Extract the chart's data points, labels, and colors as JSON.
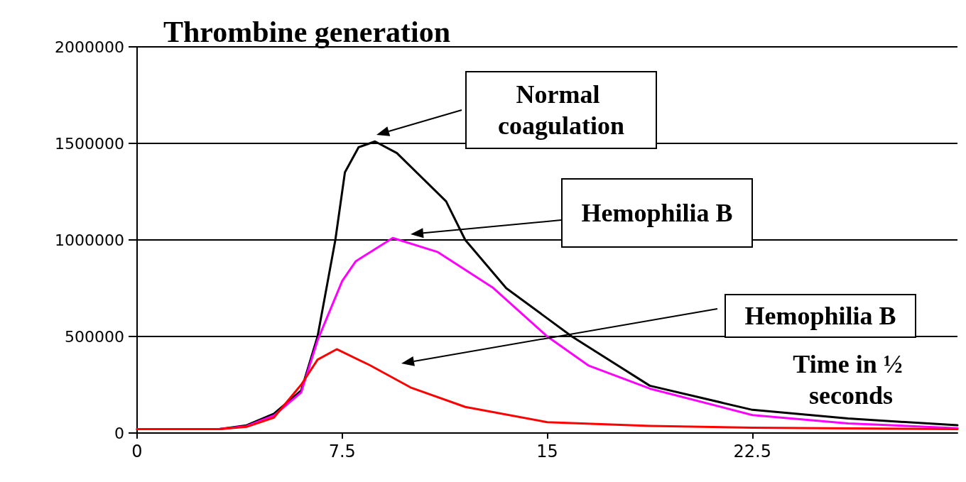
{
  "chart_data": {
    "type": "line",
    "title": "Thrombine generation",
    "xlabel": "Time in ½ seconds",
    "xlim": [
      0,
      30
    ],
    "xticks": [
      0,
      7.5,
      15,
      22.5
    ],
    "ylim": [
      0,
      2000000
    ],
    "yticks": [
      0,
      500000,
      1000000,
      1500000,
      2000000
    ],
    "grid": "y",
    "marker": "none",
    "line_style": "solid",
    "series": [
      {
        "color": "#000000",
        "x": [
          0,
          3,
          4,
          5,
          6,
          6.6,
          7.25,
          7.6,
          8.1,
          8.7,
          9.5,
          11.3,
          12,
          13.5,
          15.9,
          18.75,
          22.5,
          26,
          30
        ],
        "values": [
          20000,
          20000,
          40000,
          100000,
          220000,
          500000,
          1000000,
          1350000,
          1480000,
          1510000,
          1450000,
          1200000,
          1000000,
          750000,
          500000,
          245000,
          120000,
          75000,
          40000
        ]
      },
      {
        "color": "#ff00ff",
        "x": [
          0,
          3,
          4,
          5,
          6,
          6.6,
          7.5,
          8,
          9.35,
          11,
          13,
          15,
          16.5,
          18.75,
          22.5,
          26,
          30
        ],
        "values": [
          20000,
          20000,
          35000,
          90000,
          210000,
          480000,
          787000,
          890000,
          1010000,
          937000,
          754000,
          500000,
          350000,
          230000,
          93000,
          50000,
          25000
        ]
      },
      {
        "color": "#ff0000",
        "x": [
          0,
          3,
          4,
          5,
          6,
          6.6,
          7.3,
          8.5,
          10,
          12,
          15,
          18.75,
          22.5,
          30
        ],
        "values": [
          20000,
          20000,
          32000,
          80000,
          250000,
          380000,
          434000,
          352000,
          236000,
          135000,
          56000,
          37000,
          28000,
          20000
        ]
      }
    ],
    "annotations": [
      "Normal coagulation",
      "Hemophilia B",
      "Hemophilia B"
    ]
  }
}
